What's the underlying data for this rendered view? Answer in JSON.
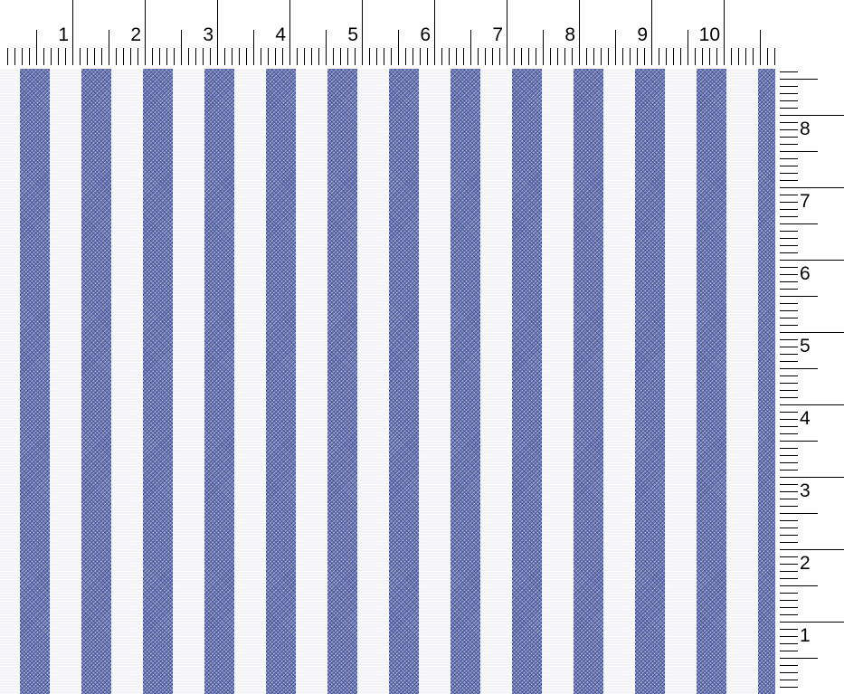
{
  "top_ruler": {
    "labels": [
      "1",
      "2",
      "3",
      "4",
      "5",
      "6",
      "7",
      "8",
      "9",
      "10"
    ]
  },
  "side_ruler": {
    "labels": [
      "8",
      "7",
      "6",
      "5",
      "4",
      "3",
      "2",
      "1"
    ]
  },
  "swatch": {
    "pattern": "vertical stripes",
    "stripe_color": "#6674ad",
    "ground_color": "#f4f4f6",
    "stripe_count": 13
  }
}
